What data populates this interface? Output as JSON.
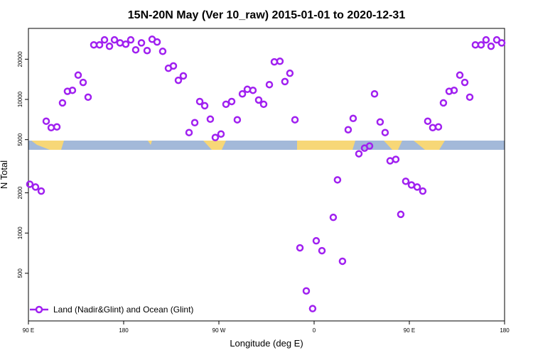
{
  "chart_data": {
    "type": "scatter",
    "title": "15N-20N May (Ver 10_raw)   2015-01-01 to 2020-12-31",
    "xlabel": "Longitude (deg E)",
    "ylabel": "N Total",
    "log_y": true,
    "legend": "bottom-left",
    "xlim": [
      90,
      540
    ],
    "xticks": [
      {
        "value": 90,
        "label": "90 E"
      },
      180,
      {
        "value": 270,
        "label": "90 W"
      },
      {
        "value": 360,
        "label": "0"
      },
      {
        "value": 450,
        "label": "90 E"
      },
      {
        "value": 540,
        "label": "180"
      }
    ],
    "ylim": [
      220,
      34000
    ],
    "yticks": [
      500,
      1000,
      2000,
      5000,
      10000,
      20000
    ],
    "series": [
      {
        "name": "Land (Nadir&Glint) and Ocean (Glint)",
        "color": "#a020f0",
        "x": [
          91.3,
          96.7,
          102.1,
          106.8,
          111.5,
          116.9,
          122.2,
          126.9,
          131.6,
          137.0,
          141.7,
          146.4,
          151.8,
          157.2,
          161.9,
          166.6,
          171.3,
          176.6,
          182.0,
          186.7,
          191.4,
          196.8,
          202.2,
          206.9,
          211.6,
          216.9,
          222.3,
          227.0,
          231.7,
          236.4,
          241.8,
          247.2,
          251.9,
          256.6,
          261.9,
          266.6,
          272.0,
          276.7,
          282.1,
          287.4,
          292.2,
          296.9,
          302.2,
          307.6,
          312.3,
          317.7,
          322.4,
          327.7,
          332.4,
          337.1,
          341.9,
          346.6,
          352.6,
          358.6,
          362.0,
          367.4,
          378.1,
          382.1,
          386.8,
          392.2,
          396.9,
          402.3,
          407.7,
          412.4,
          417.1,
          422.4,
          427.1,
          431.8,
          437.2,
          441.9,
          446.6,
          452.0,
          457.4,
          462.7,
          467.4,
          472.1,
          477.5,
          482.2,
          487.6,
          492.3,
          497.7,
          502.4,
          507.1,
          512.4,
          517.8,
          522.5,
          527.2,
          532.6,
          537.3
        ],
        "values": [
          2320,
          2210,
          2060,
          6870,
          6150,
          6230,
          9420,
          11500,
          11700,
          15200,
          13400,
          10400,
          25600,
          25600,
          27900,
          25000,
          27900,
          26500,
          25900,
          27900,
          23500,
          26500,
          23200,
          28200,
          26900,
          22900,
          17100,
          17800,
          13900,
          15000,
          5650,
          6700,
          9650,
          8970,
          7120,
          5190,
          5510,
          9200,
          9650,
          7040,
          11000,
          11900,
          11700,
          9900,
          9200,
          12900,
          19100,
          19300,
          13600,
          15700,
          7040,
          775,
          369,
          272,
          875,
          738,
          1310,
          2500,
          615,
          5930,
          7210,
          3920,
          4320,
          4480,
          11000,
          6780,
          5650,
          3470,
          3560,
          1380,
          2440,
          2290,
          2210,
          2060,
          6870,
          6150,
          6230,
          9420,
          11500,
          11700,
          15200,
          13400,
          10400,
          25600,
          25600,
          27900,
          25000,
          27900,
          26500
        ]
      }
    ]
  }
}
